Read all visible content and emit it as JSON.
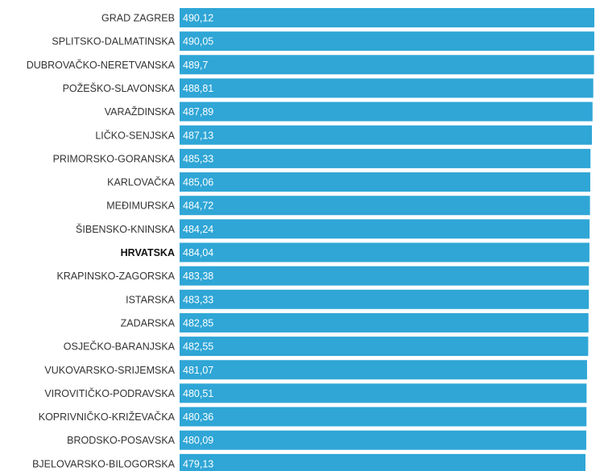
{
  "chart_data": {
    "type": "bar",
    "orientation": "horizontal",
    "bar_color": "#2fa6d6",
    "categories": [
      "GRAD ZAGREB",
      "SPLITSKO-DALMATINSKA",
      "DUBROVAČKO-NERETVANSKA",
      "POŽEŠKO-SLAVONSKA",
      "VARAŽDINSKA",
      "LIČKO-SENJSKA",
      "PRIMORSKO-GORANSKA",
      "KARLOVAČKA",
      "MEĐIMURSKA",
      "ŠIBENSKO-KNINSKA",
      "HRVATSKA",
      "KRAPINSKO-ZAGORSKA",
      "ISTARSKA",
      "ZADARSKA",
      "OSJEČKO-BARANJSKA",
      "VUKOVARSKO-SRIJEMSKA",
      "VIROVITIČKO-PODRAVSKA",
      "KOPRIVNIČKO-KRIŽEVAČKA",
      "BRODSKO-POSAVSKA",
      "BJELOVARSKO-BILOGORSKA"
    ],
    "values": [
      490.12,
      490.05,
      489.7,
      488.81,
      487.89,
      487.13,
      485.33,
      485.06,
      484.72,
      484.24,
      484.04,
      483.38,
      483.33,
      482.85,
      482.55,
      481.07,
      480.51,
      480.36,
      480.09,
      479.13
    ],
    "value_labels": [
      "490,12",
      "490,05",
      "489,7",
      "488,81",
      "487,89",
      "487,13",
      "485,33",
      "485,06",
      "484,72",
      "484,24",
      "484,04",
      "483,38",
      "483,33",
      "482,85",
      "482,55",
      "481,07",
      "480,51",
      "480,36",
      "480,09",
      "479,13"
    ],
    "highlight_category": "HRVATSKA"
  }
}
